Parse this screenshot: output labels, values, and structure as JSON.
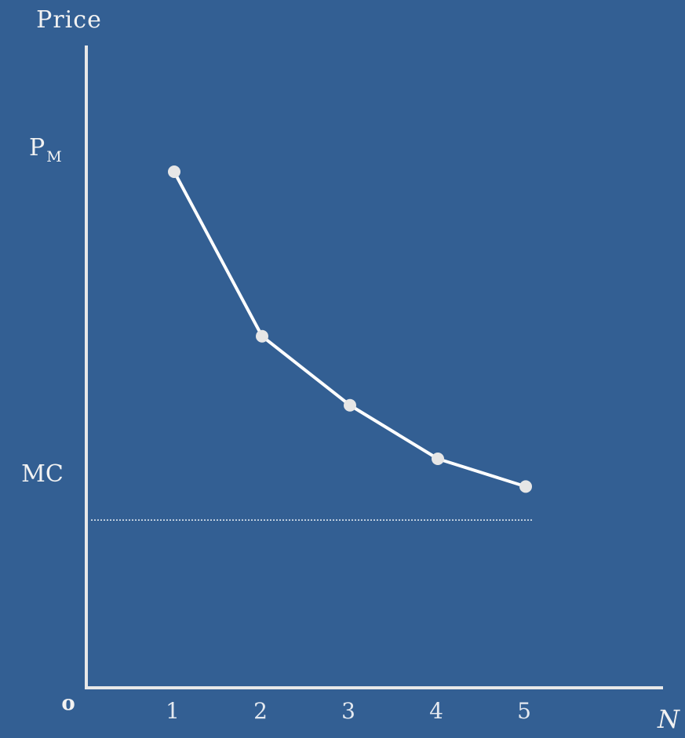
{
  "chart_data": {
    "type": "line",
    "ylabel": "Price",
    "xlabel": "N",
    "origin_label": "o",
    "x": [
      1,
      2,
      3,
      4,
      5
    ],
    "x_tick_labels": [
      "1",
      "2",
      "3",
      "4",
      "5"
    ],
    "series": [
      {
        "values": [
          8.0,
          5.45,
          4.38,
          3.55,
          3.12
        ]
      }
    ],
    "xlim": [
      0,
      6.2
    ],
    "ylim": [
      0,
      10.45
    ],
    "reference_lines": [
      {
        "label": "MC",
        "y": 2.6,
        "style": "dotted"
      }
    ],
    "y_markers": [
      {
        "label": "P",
        "subscript": "M",
        "y": 8.0
      }
    ],
    "grid": false,
    "legend": "none"
  },
  "colors": {
    "background": "#335f93",
    "axis": "#e8e8e8",
    "line": "#ffffff",
    "marker": "#e6e6e6"
  }
}
